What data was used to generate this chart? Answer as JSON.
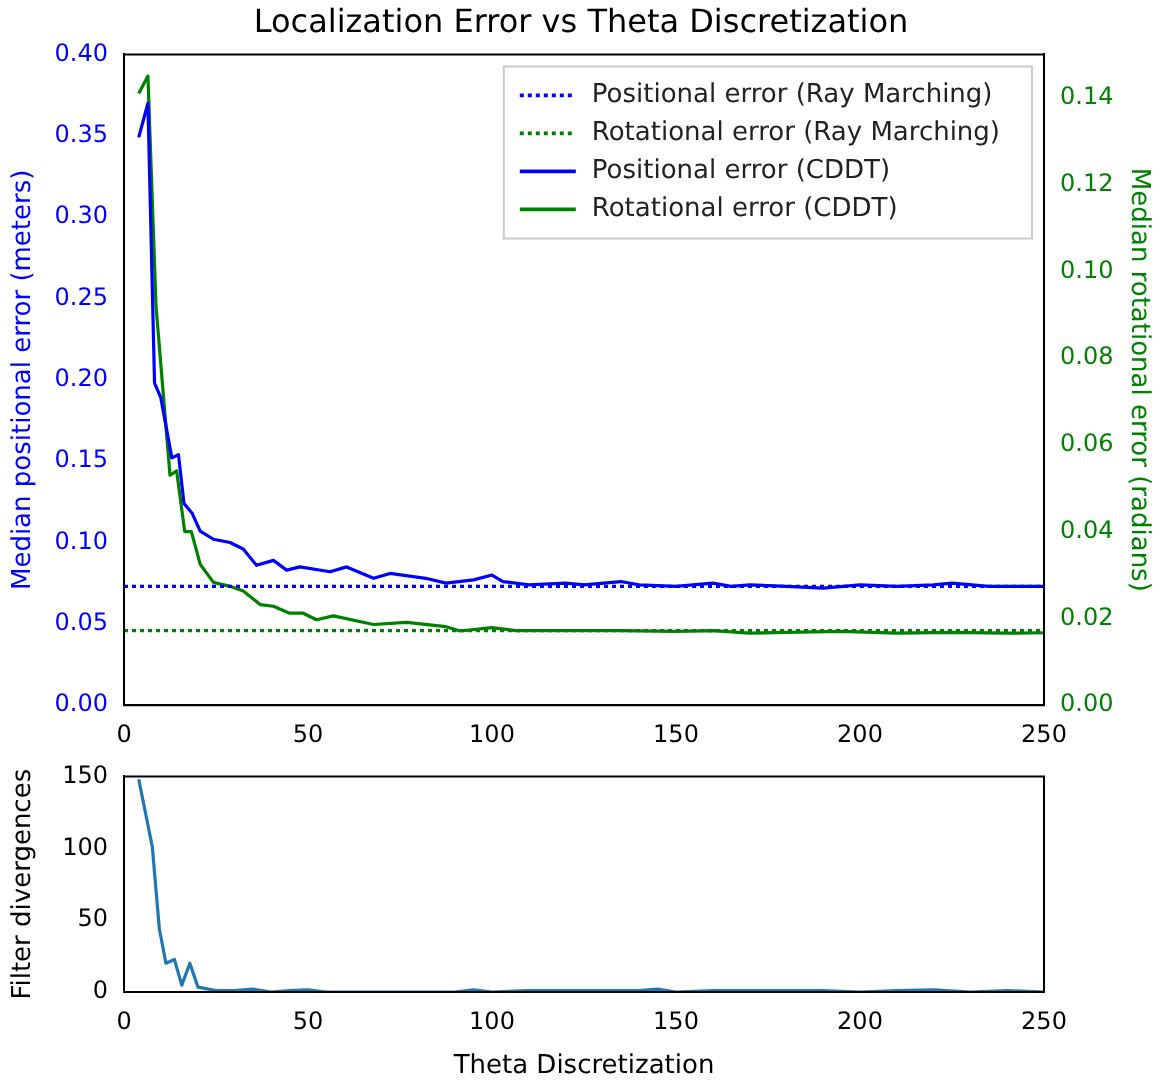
{
  "chart_data": [
    {
      "type": "line",
      "title": "Localization Error vs Theta Discretization",
      "ylabel": "Median positional error (meters)",
      "y2label": "Median rotational error (radians)",
      "xlim": [
        0,
        250
      ],
      "xticks": [
        0,
        50,
        100,
        150,
        200,
        250
      ],
      "ylim": [
        0,
        0.4
      ],
      "yticks": [
        {
          "value": 0,
          "label": "0.00"
        },
        {
          "value": 0.05,
          "label": "0.05"
        },
        {
          "value": 0.1,
          "label": "0.10"
        },
        {
          "value": 0.15,
          "label": "0.15"
        },
        {
          "value": 0.2,
          "label": "0.20"
        },
        {
          "value": 0.25,
          "label": "0.25"
        },
        {
          "value": 0.3,
          "label": "0.30"
        },
        {
          "value": 0.35,
          "label": "0.35"
        },
        {
          "value": 0.4,
          "label": "0.40"
        }
      ],
      "y2lim": [
        0,
        0.15
      ],
      "y2ticks": [
        {
          "value": 0,
          "label": "0.00"
        },
        {
          "value": 0.02,
          "label": "0.02"
        },
        {
          "value": 0.04,
          "label": "0.04"
        },
        {
          "value": 0.06,
          "label": "0.06"
        },
        {
          "value": 0.08,
          "label": "0.08"
        },
        {
          "value": 0.1,
          "label": "0.10"
        },
        {
          "value": 0.12,
          "label": "0.12"
        },
        {
          "value": 0.14,
          "label": "0.14"
        }
      ],
      "legend": "top right",
      "series": [
        {
          "name": "Positional error (Ray Marching)",
          "color": "#0000ff",
          "line_style": "dotted",
          "axis": "y",
          "x": [
            0,
            250
          ],
          "values": [
            0.073,
            0.073
          ]
        },
        {
          "name": "Rotational error (Ray Marching)",
          "color": "#008000",
          "line_style": "dotted",
          "axis": "y2",
          "x": [
            0,
            250
          ],
          "values": [
            0.0172,
            0.0172
          ]
        },
        {
          "name": "Positional error (CDDT)",
          "color": "#0000ff",
          "line_style": "solid",
          "axis": "y",
          "x": [
            4,
            6.5,
            8.3,
            10,
            13,
            14.8,
            16.3,
            18.5,
            20.7,
            24.3,
            28.8,
            32.4,
            36,
            40.6,
            44.2,
            47.8,
            56,
            60.5,
            67.8,
            72.3,
            82,
            87.5,
            95,
            100,
            103,
            110,
            120,
            125,
            135,
            140,
            150,
            160,
            165,
            170,
            180,
            190,
            200,
            210,
            220,
            225,
            235,
            250
          ],
          "values": [
            0.349,
            0.37,
            0.198,
            0.189,
            0.152,
            0.154,
            0.124,
            0.118,
            0.107,
            0.102,
            0.1,
            0.096,
            0.086,
            0.089,
            0.083,
            0.085,
            0.082,
            0.085,
            0.078,
            0.081,
            0.078,
            0.075,
            0.077,
            0.08,
            0.076,
            0.074,
            0.075,
            0.074,
            0.076,
            0.074,
            0.073,
            0.075,
            0.073,
            0.074,
            0.073,
            0.072,
            0.074,
            0.073,
            0.074,
            0.075,
            0.073,
            0.073
          ]
        },
        {
          "name": "Rotational error (CDDT)",
          "color": "#008000",
          "line_style": "solid",
          "axis": "y2",
          "x": [
            4,
            6.5,
            8.7,
            12.5,
            14.3,
            16.5,
            18.3,
            20.7,
            24.3,
            28.8,
            32.4,
            37,
            40.6,
            45,
            48.7,
            52.3,
            56.9,
            67.8,
            76.8,
            87.5,
            91.3,
            100,
            106.5,
            120,
            135,
            150,
            160,
            170,
            180,
            195,
            210,
            225,
            240,
            250
          ],
          "values": [
            0.141,
            0.145,
            0.092,
            0.053,
            0.054,
            0.04,
            0.04,
            0.0325,
            0.0283,
            0.0274,
            0.0263,
            0.0232,
            0.0228,
            0.0212,
            0.0212,
            0.0197,
            0.0206,
            0.0186,
            0.0191,
            0.0181,
            0.0171,
            0.0179,
            0.0172,
            0.0172,
            0.0172,
            0.017,
            0.0172,
            0.0166,
            0.0168,
            0.017,
            0.0166,
            0.0168,
            0.0166,
            0.0167
          ]
        }
      ]
    },
    {
      "type": "line",
      "xlabel": "Theta Discretization",
      "ylabel": "Filter divergences",
      "xlim": [
        0,
        250
      ],
      "xticks": [
        0,
        50,
        100,
        150,
        200,
        250
      ],
      "ylim": [
        0,
        150
      ],
      "yticks": [
        0,
        50,
        100,
        150
      ],
      "series": [
        {
          "color": "#1f77b4",
          "x": [
            4,
            7.7,
            9.6,
            11.4,
            13.7,
            15.7,
            17.9,
            20.1,
            25,
            30,
            35,
            40,
            45,
            50,
            55,
            60,
            70,
            80,
            90,
            95,
            100,
            110,
            120,
            130,
            140,
            145,
            150,
            160,
            170,
            180,
            190,
            200,
            210,
            220,
            230,
            240,
            250
          ],
          "values": [
            148,
            101,
            44,
            20,
            22.6,
            4.8,
            20,
            3.4,
            1,
            1,
            2,
            0,
            1,
            1.5,
            0,
            0,
            0,
            0,
            0,
            1.5,
            0,
            1,
            1,
            1,
            1,
            2,
            0,
            1,
            1,
            1,
            1,
            0,
            1,
            1.5,
            0,
            1,
            0
          ]
        }
      ]
    }
  ]
}
